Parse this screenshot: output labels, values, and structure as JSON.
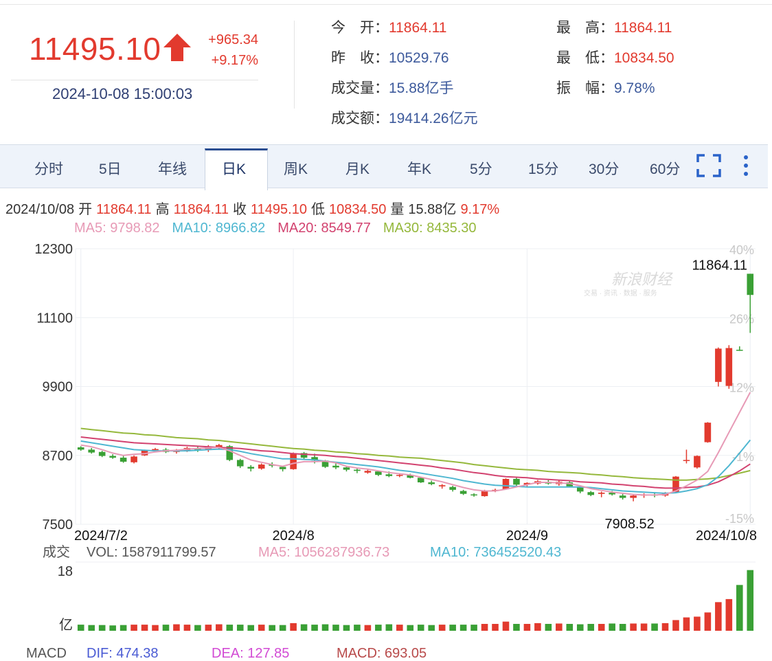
{
  "quote": {
    "last": "11495.10",
    "change": "+965.34",
    "change_pct": "+9.17%",
    "datetime": "2024-10-08 15:00:03"
  },
  "stats": [
    {
      "label": "今　开",
      "value": "11864.11",
      "color": "red"
    },
    {
      "label": "最　高",
      "value": "11864.11",
      "color": "red"
    },
    {
      "label": "昨　收",
      "value": "10529.76",
      "color": "blue"
    },
    {
      "label": "最　低",
      "value": "10834.50",
      "color": "red"
    },
    {
      "label": "成交量",
      "value": "15.88亿手",
      "color": "blue"
    },
    {
      "label": "振　幅",
      "value": "9.78%",
      "color": "blue"
    },
    {
      "label": "成交额",
      "value": "19414.26亿元",
      "color": "blue"
    }
  ],
  "tabs": [
    "分时",
    "5日",
    "年线",
    "日K",
    "周K",
    "月K",
    "年K",
    "5分",
    "15分",
    "30分",
    "60分"
  ],
  "active_tab": "日K",
  "icons": {
    "fullscreen": "fullscreen-icon",
    "more": "more-vertical-icon",
    "up_arrow": "up-arrow-icon"
  },
  "summary": {
    "date": "2024/10/08",
    "open_label": "开",
    "open": "11864.11",
    "high_label": "高",
    "high": "11864.11",
    "close_label": "收",
    "close": "11495.10",
    "low_label": "低",
    "low": "10834.50",
    "vol_label": "量",
    "vol": "15.88亿",
    "pct": "9.17%"
  },
  "ma": {
    "ma5": "MA5: 9798.82",
    "ma10": "MA10: 8966.82",
    "ma20": "MA20: 8549.77",
    "ma30": "MA30: 8435.30"
  },
  "colors": {
    "up": "#e23a2e",
    "down": "#3aa035",
    "ma5": "#e79ab6",
    "ma10": "#4fb7d1",
    "ma20": "#d2426f",
    "ma30": "#95b83c"
  },
  "watermark": {
    "text": "新浪财经",
    "sub": "交易 · 资讯 · 数据 · 服务"
  },
  "chart_data": {
    "type": "candlestick",
    "y_ticks": [
      "12300",
      "11100",
      "9900",
      "8700",
      "7500"
    ],
    "ylim": [
      7500,
      12300
    ],
    "pct_ticks": [
      "40%",
      "26%",
      "12%",
      "-1%",
      "-15%"
    ],
    "x_labels": [
      "2024/7/2",
      "2024/8",
      "2024/9",
      "2024/10/8"
    ],
    "x_label_index": [
      0,
      20,
      42,
      63
    ],
    "annotations": {
      "max": "11864.11",
      "max_index": 63,
      "min": "7908.52",
      "min_index": 51
    },
    "candles": [
      [
        8840,
        8860,
        8780,
        8800
      ],
      [
        8800,
        8830,
        8730,
        8750
      ],
      [
        8760,
        8780,
        8670,
        8690
      ],
      [
        8690,
        8720,
        8640,
        8660
      ],
      [
        8660,
        8700,
        8570,
        8590
      ],
      [
        8580,
        8700,
        8560,
        8680
      ],
      [
        8700,
        8800,
        8690,
        8790
      ],
      [
        8790,
        8830,
        8760,
        8810
      ],
      [
        8800,
        8830,
        8740,
        8760
      ],
      [
        8760,
        8810,
        8730,
        8790
      ],
      [
        8790,
        8850,
        8760,
        8830
      ],
      [
        8820,
        8870,
        8760,
        8790
      ],
      [
        8800,
        8880,
        8760,
        8840
      ],
      [
        8840,
        8900,
        8800,
        8880
      ],
      [
        8860,
        8880,
        8600,
        8620
      ],
      [
        8620,
        8640,
        8480,
        8510
      ],
      [
        8500,
        8530,
        8420,
        8470
      ],
      [
        8470,
        8560,
        8450,
        8540
      ],
      [
        8540,
        8580,
        8490,
        8520
      ],
      [
        8500,
        8520,
        8420,
        8460
      ],
      [
        8460,
        8750,
        8450,
        8740
      ],
      [
        8740,
        8760,
        8620,
        8660
      ],
      [
        8670,
        8730,
        8560,
        8610
      ],
      [
        8610,
        8620,
        8480,
        8500
      ],
      [
        8520,
        8560,
        8460,
        8490
      ],
      [
        8490,
        8510,
        8420,
        8450
      ],
      [
        8450,
        8480,
        8390,
        8430
      ],
      [
        8400,
        8450,
        8380,
        8430
      ],
      [
        8420,
        8440,
        8340,
        8360
      ],
      [
        8370,
        8420,
        8320,
        8340
      ],
      [
        8350,
        8390,
        8320,
        8360
      ],
      [
        8360,
        8380,
        8300,
        8310
      ],
      [
        8310,
        8320,
        8220,
        8230
      ],
      [
        8230,
        8260,
        8180,
        8200
      ],
      [
        8160,
        8200,
        8120,
        8180
      ],
      [
        8150,
        8170,
        8070,
        8100
      ],
      [
        8080,
        8100,
        8010,
        8030
      ],
      [
        8020,
        8040,
        7980,
        8010
      ],
      [
        7990,
        8100,
        7980,
        8080
      ],
      [
        8090,
        8120,
        8060,
        8100
      ],
      [
        8110,
        8300,
        8100,
        8290
      ],
      [
        8290,
        8310,
        8170,
        8190
      ],
      [
        8190,
        8230,
        8150,
        8220
      ],
      [
        8210,
        8270,
        8190,
        8250
      ],
      [
        8240,
        8270,
        8190,
        8210
      ],
      [
        8200,
        8260,
        8170,
        8240
      ],
      [
        8230,
        8250,
        8140,
        8160
      ],
      [
        8140,
        8160,
        8040,
        8070
      ],
      [
        8060,
        8080,
        7990,
        8010
      ],
      [
        8030,
        8070,
        7970,
        8050
      ],
      [
        8050,
        8080,
        8000,
        8020
      ],
      [
        8000,
        8030,
        7930,
        7960
      ],
      [
        7960,
        8020,
        7900,
        8000
      ],
      [
        8000,
        8040,
        7960,
        8020
      ],
      [
        8020,
        8060,
        7970,
        8000
      ],
      [
        8000,
        8060,
        7980,
        8040
      ],
      [
        8060,
        8340,
        8050,
        8330
      ],
      [
        8620,
        8800,
        8560,
        8620
      ],
      [
        8490,
        8700,
        8470,
        8690
      ],
      [
        8930,
        9280,
        8920,
        9270
      ],
      [
        9980,
        10580,
        9900,
        10560
      ],
      [
        9910,
        10620,
        9860,
        10570
      ],
      [
        10540,
        10600,
        10520,
        10530
      ],
      [
        11864,
        11864,
        10834,
        11495
      ]
    ],
    "ma5": [
      8880,
      8850,
      8800,
      8740,
      8700,
      8720,
      8730,
      8760,
      8780,
      8790,
      8810,
      8820,
      8830,
      8840,
      8780,
      8700,
      8620,
      8580,
      8540,
      8510,
      8560,
      8590,
      8590,
      8600,
      8570,
      8510,
      8480,
      8460,
      8430,
      8400,
      8380,
      8360,
      8320,
      8280,
      8240,
      8190,
      8140,
      8100,
      8080,
      8080,
      8110,
      8150,
      8190,
      8230,
      8230,
      8220,
      8210,
      8170,
      8120,
      8090,
      8060,
      8040,
      8020,
      8010,
      8010,
      8020,
      8080,
      8170,
      8270,
      8420,
      8750,
      9100,
      9450,
      9799
    ],
    "ma10": [
      8950,
      8920,
      8890,
      8860,
      8830,
      8800,
      8790,
      8780,
      8780,
      8780,
      8780,
      8790,
      8800,
      8810,
      8800,
      8770,
      8730,
      8700,
      8670,
      8640,
      8640,
      8630,
      8620,
      8600,
      8580,
      8560,
      8540,
      8520,
      8500,
      8470,
      8440,
      8420,
      8390,
      8360,
      8330,
      8300,
      8260,
      8230,
      8200,
      8180,
      8170,
      8160,
      8150,
      8150,
      8150,
      8150,
      8150,
      8150,
      8140,
      8120,
      8100,
      8080,
      8070,
      8060,
      8050,
      8040,
      8050,
      8080,
      8120,
      8190,
      8330,
      8520,
      8740,
      8967
    ],
    "ma20": [
      9020,
      9000,
      8980,
      8960,
      8940,
      8920,
      8910,
      8900,
      8890,
      8880,
      8870,
      8860,
      8850,
      8840,
      8830,
      8820,
      8800,
      8780,
      8770,
      8750,
      8730,
      8720,
      8710,
      8700,
      8680,
      8670,
      8650,
      8630,
      8610,
      8590,
      8570,
      8550,
      8530,
      8510,
      8480,
      8460,
      8430,
      8400,
      8380,
      8350,
      8330,
      8320,
      8310,
      8290,
      8280,
      8270,
      8260,
      8240,
      8230,
      8220,
      8200,
      8190,
      8170,
      8160,
      8140,
      8130,
      8130,
      8140,
      8150,
      8180,
      8240,
      8330,
      8430,
      8550
    ],
    "ma30": [
      9170,
      9150,
      9130,
      9110,
      9090,
      9080,
      9060,
      9050,
      9030,
      9010,
      9000,
      8990,
      8970,
      8960,
      8940,
      8920,
      8900,
      8880,
      8860,
      8840,
      8820,
      8810,
      8790,
      8780,
      8760,
      8750,
      8730,
      8720,
      8700,
      8690,
      8670,
      8660,
      8650,
      8630,
      8610,
      8590,
      8570,
      8540,
      8520,
      8500,
      8480,
      8460,
      8450,
      8440,
      8420,
      8410,
      8400,
      8390,
      8370,
      8360,
      8340,
      8330,
      8310,
      8300,
      8290,
      8280,
      8270,
      8270,
      8280,
      8290,
      8310,
      8350,
      8390,
      8435
    ],
    "volume_panel": {
      "label": "成交",
      "vol": "VOL: 1587911799.57",
      "ma5": "MA5: 1056287936.73",
      "ma10": "MA10: 736452520.43",
      "y_top": "18",
      "unit": "亿",
      "ylim": [
        0,
        18
      ],
      "volumes": [
        1.6,
        1.5,
        1.5,
        1.4,
        1.5,
        1.6,
        1.6,
        1.5,
        1.6,
        1.7,
        1.6,
        1.5,
        1.6,
        1.7,
        1.6,
        1.6,
        1.5,
        1.6,
        1.5,
        1.5,
        2.0,
        1.7,
        1.6,
        1.7,
        1.6,
        1.5,
        1.6,
        1.5,
        1.6,
        1.7,
        1.6,
        1.5,
        1.6,
        1.5,
        1.6,
        1.6,
        1.6,
        1.6,
        1.8,
        1.8,
        2.4,
        1.8,
        1.8,
        2.0,
        1.8,
        1.9,
        1.8,
        1.7,
        1.8,
        1.8,
        1.9,
        1.8,
        1.9,
        1.9,
        1.9,
        2.0,
        2.8,
        3.5,
        3.7,
        4.8,
        7.5,
        8.3,
        12.0,
        15.9
      ]
    },
    "macd_panel": {
      "label": "MACD",
      "dif": "DIF: 474.38",
      "dea": "DEA: 127.85",
      "macd": "MACD: 693.05"
    }
  }
}
